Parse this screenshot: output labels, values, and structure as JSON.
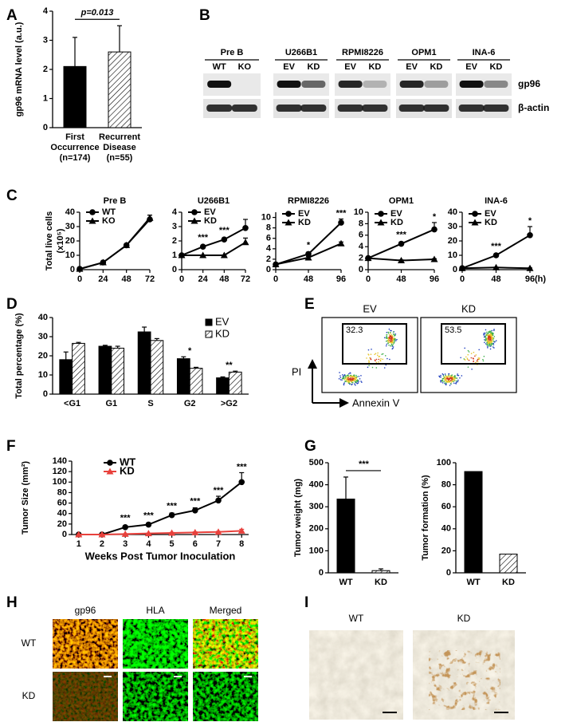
{
  "panels": [
    "A",
    "B",
    "C",
    "D",
    "E",
    "F",
    "G",
    "H",
    "I"
  ],
  "chart_data": [
    {
      "type": "bar",
      "ylabel": "gp96 mRNA level (a.u.)",
      "categories": [
        [
          "First",
          "Occurrence",
          "(n=174)"
        ],
        [
          "Recurrent",
          "Disease",
          "(n=55)"
        ]
      ],
      "values": [
        2.1,
        2.6
      ],
      "errors": [
        1.0,
        0.9
      ],
      "patterns": [
        "solid",
        "hatched"
      ],
      "ylim": [
        0,
        4
      ],
      "yticks": [
        0,
        1,
        2,
        3,
        4
      ],
      "annotation": "p=0.013"
    },
    {
      "type": "line",
      "title": "Pre B",
      "ylabel": "Total live cells",
      "ylabel_unit": "(x10⁵)",
      "x": [
        0,
        24,
        48,
        72
      ],
      "xlim": [
        0,
        72
      ],
      "xticks": [
        0,
        24,
        48,
        72
      ],
      "ylim": [
        0,
        40
      ],
      "yticks": [
        0,
        10,
        20,
        30,
        40
      ],
      "series": [
        {
          "name": "WT",
          "color": "#000000",
          "marker": "circle",
          "values": [
            0.5,
            5,
            17,
            35
          ],
          "errors": [
            0,
            0,
            0,
            3
          ]
        },
        {
          "name": "KO",
          "color": "#000000",
          "marker": "triangle",
          "values": [
            0.5,
            5,
            17,
            36
          ],
          "errors": [
            0,
            0,
            0,
            2
          ]
        }
      ]
    },
    {
      "type": "line",
      "title": "U266B1",
      "x": [
        0,
        24,
        48,
        72
      ],
      "xlim": [
        0,
        72
      ],
      "xticks": [
        0,
        24,
        48,
        72
      ],
      "ylim": [
        0,
        4
      ],
      "yticks": [
        0,
        1,
        2,
        3,
        4
      ],
      "series": [
        {
          "name": "EV",
          "color": "#000000",
          "marker": "circle",
          "values": [
            1,
            1.6,
            2.1,
            2.9
          ],
          "errors": [
            0,
            0,
            0,
            0.6
          ]
        },
        {
          "name": "KD",
          "color": "#000000",
          "marker": "triangle",
          "values": [
            1,
            1,
            1,
            1.9
          ],
          "errors": [
            0,
            0,
            0,
            0.3
          ]
        }
      ],
      "significance": [
        null,
        "***",
        "***",
        null
      ]
    },
    {
      "type": "line",
      "title": "RPMI8226",
      "x": [
        0,
        48,
        96
      ],
      "xlim": [
        0,
        96
      ],
      "xticks": [
        0,
        48,
        96
      ],
      "ylim": [
        0,
        11
      ],
      "yticks": [
        0,
        2,
        4,
        6,
        8,
        10
      ],
      "series": [
        {
          "name": "EV",
          "color": "#000000",
          "marker": "circle",
          "values": [
            1,
            3,
            9
          ],
          "errors": [
            0,
            0.3,
            0.7
          ]
        },
        {
          "name": "KD",
          "color": "#000000",
          "marker": "triangle",
          "values": [
            1,
            2.3,
            5
          ],
          "errors": [
            0,
            0.2,
            0.3
          ]
        }
      ],
      "significance": [
        null,
        "*",
        "***"
      ]
    },
    {
      "type": "line",
      "title": "OPM1",
      "x": [
        0,
        48,
        96
      ],
      "xlim": [
        0,
        96
      ],
      "xticks": [
        0,
        48,
        96
      ],
      "ylim": [
        0,
        10
      ],
      "yticks": [
        0,
        2,
        4,
        6,
        8,
        10
      ],
      "series": [
        {
          "name": "EV",
          "color": "#000000",
          "marker": "circle",
          "values": [
            2,
            4.5,
            7
          ],
          "errors": [
            0,
            0.3,
            1.2
          ]
        },
        {
          "name": "KD",
          "color": "#000000",
          "marker": "triangle",
          "values": [
            2,
            1.6,
            1.8
          ],
          "errors": [
            0,
            0.1,
            0.1
          ]
        }
      ],
      "significance": [
        null,
        "***",
        "*"
      ]
    },
    {
      "type": "line",
      "title": "INA-6",
      "xlabel": "(h)",
      "x": [
        0,
        48,
        96
      ],
      "xlim": [
        0,
        96
      ],
      "xticks": [
        0,
        48,
        96
      ],
      "ylim": [
        0,
        40
      ],
      "yticks": [
        0,
        10,
        20,
        30,
        40
      ],
      "series": [
        {
          "name": "EV",
          "color": "#000000",
          "marker": "circle",
          "values": [
            1,
            10,
            24
          ],
          "errors": [
            0,
            0.5,
            6
          ]
        },
        {
          "name": "KD",
          "color": "#000000",
          "marker": "triangle",
          "values": [
            1,
            1.5,
            1
          ],
          "errors": [
            0,
            0.2,
            0.2
          ]
        }
      ],
      "significance": [
        null,
        "***",
        "*"
      ]
    },
    {
      "type": "bar",
      "ylabel": "Total percentage (%)",
      "categories": [
        "<G1",
        "G1",
        "S",
        "G2",
        ">G2"
      ],
      "series": [
        {
          "name": "EV",
          "pattern": "solid",
          "values": [
            18,
            25,
            32.5,
            18.5,
            8.5
          ],
          "errors": [
            4,
            0.5,
            2.5,
            1,
            0.5
          ]
        },
        {
          "name": "KD",
          "pattern": "hatched",
          "values": [
            26.5,
            24,
            28,
            13.5,
            11.5
          ],
          "errors": [
            0.5,
            1,
            1,
            0.5,
            0.5
          ]
        }
      ],
      "significance": [
        null,
        null,
        null,
        "*",
        "**"
      ],
      "ylim": [
        0,
        40
      ],
      "yticks": [
        0,
        10,
        20,
        30,
        40
      ],
      "legend": "upper right"
    },
    {
      "type": "line",
      "ylabel": "Tumor Size (mm²)",
      "xlabel": "Weeks Post Tumor Inoculation",
      "x": [
        1,
        2,
        3,
        4,
        5,
        6,
        7,
        8
      ],
      "xlim": [
        0.7,
        8.3
      ],
      "xticks": [
        1,
        2,
        3,
        4,
        5,
        6,
        7,
        8
      ],
      "ylim": [
        0,
        140
      ],
      "yticks": [
        0,
        20,
        40,
        60,
        80,
        100,
        120,
        140
      ],
      "series": [
        {
          "name": "WT",
          "color": "#000000",
          "marker": "circle",
          "values": [
            0,
            0,
            14,
            19,
            37,
            46,
            65,
            100
          ],
          "errors": [
            0,
            0,
            2,
            3,
            4,
            5,
            8,
            18
          ]
        },
        {
          "name": "KD",
          "color": "#e8413c",
          "marker": "triangle",
          "values": [
            0,
            0,
            1,
            2,
            3,
            4,
            5,
            7
          ],
          "errors": [
            0,
            0,
            0.5,
            0.5,
            1,
            1,
            1,
            3
          ]
        }
      ],
      "significance": [
        null,
        null,
        "***",
        "***",
        "***",
        "***",
        "***",
        "***"
      ]
    },
    {
      "type": "bar",
      "ylabel": "Tumor weight (mg)",
      "categories": [
        "WT",
        "KD"
      ],
      "values": [
        335,
        10
      ],
      "errors": [
        100,
        8
      ],
      "patterns": [
        "solid",
        "hatched"
      ],
      "ylim": [
        0,
        500
      ],
      "yticks": [
        0,
        100,
        200,
        300,
        400,
        500
      ],
      "annotation": "***"
    },
    {
      "type": "bar",
      "ylabel": "Tumor formation (%)",
      "categories": [
        "WT",
        "KD"
      ],
      "values": [
        92,
        17
      ],
      "patterns": [
        "solid",
        "hatched"
      ],
      "ylim": [
        0,
        100
      ],
      "yticks": [
        0,
        20,
        40,
        60,
        80,
        100
      ]
    }
  ],
  "blot": {
    "groups": [
      {
        "name": "Pre B",
        "lanes": [
          "WT",
          "KO"
        ]
      },
      {
        "name": "U266B1",
        "lanes": [
          "EV",
          "KD"
        ]
      },
      {
        "name": "RPMI8226",
        "lanes": [
          "EV",
          "KD"
        ]
      },
      {
        "name": "OPM1",
        "lanes": [
          "EV",
          "KD"
        ]
      },
      {
        "name": "INA-6",
        "lanes": [
          "EV",
          "KD"
        ]
      }
    ],
    "rows": [
      "gp96",
      "β-actin"
    ]
  },
  "flow": {
    "plots": [
      {
        "label": "EV",
        "gate": 32.3
      },
      {
        "label": "KD",
        "gate": 53.5
      }
    ],
    "ylabel": "PI",
    "xlabel": "Annexin V"
  },
  "histology_h": {
    "columns": [
      "gp96",
      "HLA",
      "Merged"
    ],
    "rows": [
      "WT",
      "KD"
    ]
  },
  "histology_i": {
    "columns": [
      "WT",
      "KD"
    ]
  }
}
